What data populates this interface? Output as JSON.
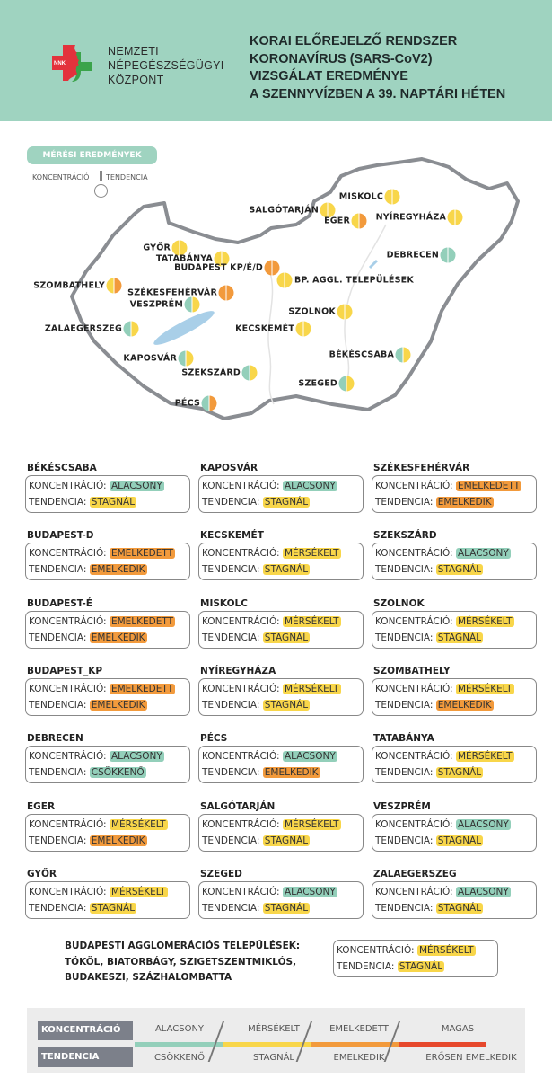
{
  "header": {
    "logo_text": "NNK",
    "org_lines": [
      "NEMZETI",
      "NÉPEGÉSZSÉGÜGYI",
      "KÖZPONT"
    ],
    "title_lines": [
      "KORAI ELŐREJELZŐ RENDSZER",
      "KORONAVÍRUS (SARS-CoV2)",
      "VIZSGÁLAT EREDMÉNYE",
      "A SZENNYVÍZBEN A 39. NAPTÁRI HÉTEN"
    ]
  },
  "map": {
    "pill": "MÉRÉSI EREDMÉNYEK",
    "key_left": "KONCENTRÁCIÓ",
    "key_right": "TENDENCIA",
    "markers": [
      {
        "label": "MISKOLC",
        "conc": "MÉRSÉKELT",
        "trend": "STAGNÁL"
      },
      {
        "label": "SALGÓTARJÁN",
        "conc": "MÉRSÉKELT",
        "trend": "STAGNÁL"
      },
      {
        "label": "EGER",
        "conc": "MÉRSÉKELT",
        "trend": "EMELKEDIK"
      },
      {
        "label": "NYÍREGYHÁZA",
        "conc": "MÉRSÉKELT",
        "trend": "STAGNÁL"
      },
      {
        "label": "GYŐR",
        "conc": "MÉRSÉKELT",
        "trend": "STAGNÁL"
      },
      {
        "label": "TATABÁNYA",
        "conc": "MÉRSÉKELT",
        "trend": "STAGNÁL"
      },
      {
        "label": "BUDAPEST KP/É/D",
        "conc": "EMELKEDETT",
        "trend": "EMELKEDIK"
      },
      {
        "label": "BP. AGGL. TELEPÜLÉSEK",
        "conc": "MÉRSÉKELT",
        "trend": "STAGNÁL"
      },
      {
        "label": "DEBRECEN",
        "conc": "ALACSONY",
        "trend": "CSÖKKENŐ"
      },
      {
        "label": "SZOMBATHELY",
        "conc": "MÉRSÉKELT",
        "trend": "EMELKEDIK"
      },
      {
        "label": "SZÉKESFEHÉRVÁR",
        "conc": "EMELKEDETT",
        "trend": "EMELKEDIK"
      },
      {
        "label": "VESZPRÉM",
        "conc": "ALACSONY",
        "trend": "STAGNÁL"
      },
      {
        "label": "SZOLNOK",
        "conc": "MÉRSÉKELT",
        "trend": "STAGNÁL"
      },
      {
        "label": "ZALAEGERSZEG",
        "conc": "ALACSONY",
        "trend": "STAGNÁL"
      },
      {
        "label": "KECSKEMÉT",
        "conc": "MÉRSÉKELT",
        "trend": "STAGNÁL"
      },
      {
        "label": "BÉKÉSCSABA",
        "conc": "ALACSONY",
        "trend": "STAGNÁL"
      },
      {
        "label": "KAPOSVÁR",
        "conc": "ALACSONY",
        "trend": "STAGNÁL"
      },
      {
        "label": "SZEKSZÁRD",
        "conc": "ALACSONY",
        "trend": "STAGNÁL"
      },
      {
        "label": "SZEGED",
        "conc": "ALACSONY",
        "trend": "STAGNÁL"
      },
      {
        "label": "PÉCS",
        "conc": "ALACSONY",
        "trend": "EMELKEDIK"
      }
    ]
  },
  "field_labels": {
    "conc": "KONCENTRÁCIÓ:",
    "trend": "TENDENCIA:"
  },
  "cards": [
    {
      "name": "BÉKÉSCSABA",
      "conc": "ALACSONY",
      "trend": "STAGNÁL"
    },
    {
      "name": "BUDAPEST-D",
      "conc": "EMELKEDETT",
      "trend": "EMELKEDIK"
    },
    {
      "name": "BUDAPEST-É",
      "conc": "EMELKEDETT",
      "trend": "EMELKEDIK"
    },
    {
      "name": "BUDAPEST_KP",
      "conc": "EMELKEDETT",
      "trend": "EMELKEDIK"
    },
    {
      "name": "DEBRECEN",
      "conc": "ALACSONY",
      "trend": "CSÖKKENŐ"
    },
    {
      "name": "EGER",
      "conc": "MÉRSÉKELT",
      "trend": "EMELKEDIK"
    },
    {
      "name": "GYŐR",
      "conc": "MÉRSÉKELT",
      "trend": "STAGNÁL"
    },
    {
      "name": "KAPOSVÁR",
      "conc": "ALACSONY",
      "trend": "STAGNÁL"
    },
    {
      "name": "KECSKEMÉT",
      "conc": "MÉRSÉKELT",
      "trend": "STAGNÁL"
    },
    {
      "name": "MISKOLC",
      "conc": "MÉRSÉKELT",
      "trend": "STAGNÁL"
    },
    {
      "name": "NYÍREGYHÁZA",
      "conc": "MÉRSÉKELT",
      "trend": "STAGNÁL"
    },
    {
      "name": "PÉCS",
      "conc": "ALACSONY",
      "trend": "EMELKEDIK"
    },
    {
      "name": "SALGÓTARJÁN",
      "conc": "MÉRSÉKELT",
      "trend": "STAGNÁL"
    },
    {
      "name": "SZEGED",
      "conc": "ALACSONY",
      "trend": "STAGNÁL"
    },
    {
      "name": "SZÉKESFEHÉRVÁR",
      "conc": "EMELKEDETT",
      "trend": "EMELKEDIK"
    },
    {
      "name": "SZEKSZÁRD",
      "conc": "ALACSONY",
      "trend": "STAGNÁL"
    },
    {
      "name": "SZOLNOK",
      "conc": "MÉRSÉKELT",
      "trend": "STAGNÁL"
    },
    {
      "name": "SZOMBATHELY",
      "conc": "MÉRSÉKELT",
      "trend": "EMELKEDIK"
    },
    {
      "name": "TATABÁNYA",
      "conc": "MÉRSÉKELT",
      "trend": "STAGNÁL"
    },
    {
      "name": "VESZPRÉM",
      "conc": "ALACSONY",
      "trend": "STAGNÁL"
    },
    {
      "name": "ZALAEGERSZEG",
      "conc": "ALACSONY",
      "trend": "STAGNÁL"
    }
  ],
  "agglomeration": {
    "lines": [
      "BUDAPESTI AGGLOMERÁCIÓS TELEPÜLÉSEK:",
      "TÖKÖL, BIATORBÁGY, SZIGETSZENTMIKLÓS,",
      "BUDAKESZI, SZÁZHALOMBATTA"
    ],
    "conc": "MÉRSÉKELT",
    "trend": "STAGNÁL"
  },
  "legend": {
    "conc_title": "KONCENTRÁCIÓ",
    "trend_title": "TENDENCIA",
    "conc_levels": [
      "ALACSONY",
      "MÉRSÉKELT",
      "EMELKEDETT",
      "MAGAS"
    ],
    "trend_levels": [
      "CSÖKKENŐ",
      "STAGNÁL",
      "EMELKEDIK",
      "ERŐSEN EMELKEDIK"
    ],
    "colors": [
      "#93cfba",
      "#f8d64a",
      "#f29a3c",
      "#e6482c"
    ]
  }
}
